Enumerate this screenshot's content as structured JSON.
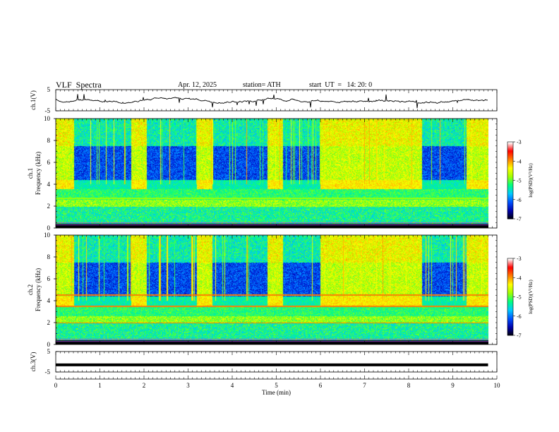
{
  "header": {
    "title": "VLF  Spectra",
    "date": "Apr. 12, 2025",
    "station": "station= ATH",
    "start": "start  UT  =   14: 20: 0"
  },
  "chart_data": {
    "type": "heatmap",
    "xlabel": "Time  (min)",
    "xlim": [
      0,
      10
    ],
    "xticks": [
      "0",
      "1",
      "2",
      "3",
      "4",
      "5",
      "6",
      "7",
      "8",
      "9",
      "10"
    ],
    "data_end_min": 9.8,
    "panels": [
      {
        "name": "ch1-waveform",
        "type": "line",
        "ylabel": "ch.1(V)",
        "ylim": [
          -5,
          5
        ],
        "yticks": [
          "5",
          "-5"
        ]
      },
      {
        "name": "ch1-spectrogram",
        "type": "heatmap",
        "ylabel": "ch.1\nFrequency  (kHz)",
        "ylabel_lines": [
          "ch.1",
          "Frequency  (kHz)"
        ],
        "ylim": [
          0,
          10
        ],
        "yticks": [
          "0",
          "2",
          "4",
          "6",
          "8",
          "10"
        ]
      },
      {
        "name": "ch2-spectrogram",
        "type": "heatmap",
        "ylabel": "ch.2\nFrequency  (kHz)",
        "ylabel_lines": [
          "ch.2",
          "Frequency  (kHz)"
        ],
        "ylim": [
          0,
          10
        ],
        "yticks": [
          "0",
          "2",
          "4",
          "6",
          "8",
          "10"
        ]
      },
      {
        "name": "ch3-waveform",
        "type": "line",
        "ylabel": "ch.3(V)",
        "ylim": [
          -5,
          5
        ],
        "yticks": [
          "5",
          "-5"
        ],
        "value": -1.5
      }
    ],
    "colorbar": {
      "label": "log(PSD)(V²/Hz)",
      "range": [
        -7,
        -3
      ],
      "ticks": [
        "-3",
        "-4",
        "-5",
        "-6",
        "-7"
      ],
      "colors": [
        "#000000",
        "#0000aa",
        "#0050ff",
        "#00c8ff",
        "#00ff80",
        "#a0ff00",
        "#ffff00",
        "#ff8000",
        "#ff0000",
        "#ffffff"
      ]
    },
    "activity_windows_min": [
      [
        0.0,
        0.4
      ],
      [
        1.7,
        2.05
      ],
      [
        3.2,
        3.55
      ],
      [
        4.8,
        5.15
      ],
      [
        6.0,
        8.3
      ],
      [
        9.3,
        9.8
      ]
    ]
  }
}
